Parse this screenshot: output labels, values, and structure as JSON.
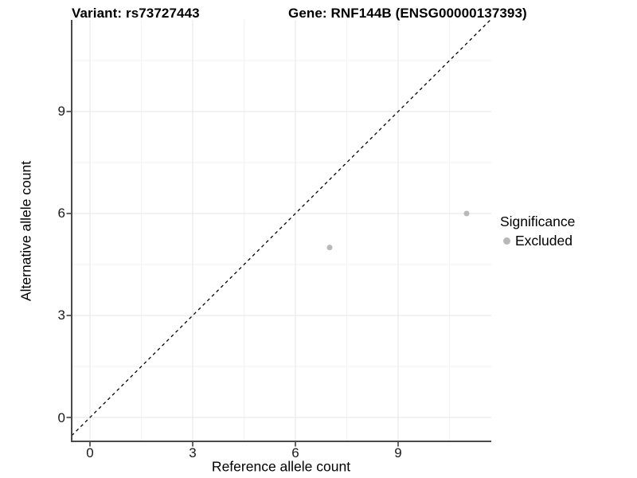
{
  "header": {
    "variant_title": "Variant: rs73727443",
    "gene_title": "Gene: RNF144B (ENSG00000137393)"
  },
  "legend": {
    "title": "Significance",
    "items": [
      {
        "label": "Excluded",
        "color": "#b8b8b8",
        "marker": "circle"
      }
    ]
  },
  "chart_data": {
    "type": "scatter",
    "title_left": "Variant: rs73727443",
    "title_right": "Gene: RNF144B (ENSG00000137393)",
    "xlabel": "Reference allele count",
    "ylabel": "Alternative allele count",
    "xticks": [
      0,
      3,
      6,
      9
    ],
    "yticks": [
      0,
      3,
      6,
      9
    ],
    "xlim": [
      -0.55,
      11.72
    ],
    "ylim": [
      -0.7,
      11.7
    ],
    "grid": {
      "major": true,
      "minor": true,
      "major_color": "#e5e5e5",
      "minor_color": "#f2f2f2"
    },
    "identity_line": {
      "equation": "y = x",
      "style": "dashed",
      "color": "#000000"
    },
    "series": [
      {
        "name": "Excluded",
        "color": "#b8b8b8",
        "points": [
          [
            7,
            5
          ],
          [
            11,
            6
          ]
        ]
      }
    ],
    "legend_position": "right",
    "legend_title": "Significance"
  },
  "colors": {
    "axis_line": "#4a4a4a",
    "tick_mark": "#333333",
    "tick_text": "#1a1a1a",
    "background": "#ffffff"
  }
}
